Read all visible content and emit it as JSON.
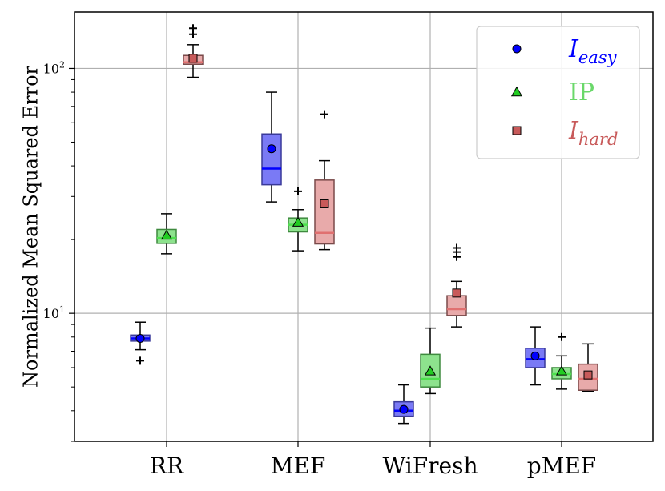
{
  "chart_data": {
    "type": "boxplot",
    "title": "",
    "xlabel": "",
    "ylabel": "Normalized Mean Squared Error",
    "yscale": "log",
    "ylim": [
      3.0,
      170
    ],
    "yticks": [
      {
        "value": 10,
        "base": "10",
        "exp": "1"
      },
      {
        "value": 100,
        "base": "10",
        "exp": "2"
      }
    ],
    "grid": true,
    "legend_position": "top-right",
    "categories": [
      "RR",
      "MEF",
      "WiFresh",
      "pMEF"
    ],
    "series": [
      {
        "name": "I_easy",
        "legend_main": "I",
        "legend_sub": "easy",
        "color": "#0000ff",
        "box_color": "#7a7af5",
        "box_edge": "#3a3a9a",
        "median_color": "#0000ff",
        "marker": "circle",
        "boxes": [
          {
            "whislo": 7.1,
            "q1": 7.7,
            "med": 7.9,
            "q3": 8.15,
            "whishi": 9.2,
            "mean": 7.9,
            "fliers": [
              6.4
            ]
          },
          {
            "whislo": 28.5,
            "q1": 33.5,
            "med": 39,
            "q3": 54,
            "whishi": 80,
            "mean": 47,
            "fliers": []
          },
          {
            "whislo": 3.55,
            "q1": 3.8,
            "med": 4.0,
            "q3": 4.35,
            "whishi": 5.1,
            "mean": 4.05,
            "fliers": []
          },
          {
            "whislo": 5.1,
            "q1": 6.0,
            "med": 6.5,
            "q3": 7.2,
            "whishi": 8.8,
            "mean": 6.7,
            "fliers": []
          }
        ]
      },
      {
        "name": "IP",
        "legend_main": "IP",
        "legend_sub": "",
        "color": "#22cc22",
        "legend_text_color": "#6ad86a",
        "box_color": "#8de28d",
        "box_edge": "#3e8a3e",
        "median_color": "#4ee04e",
        "marker": "triangle",
        "boxes": [
          {
            "whislo": 17.5,
            "q1": 19.3,
            "med": 20.3,
            "q3": 22,
            "whishi": 25.5,
            "mean": 20.8,
            "fliers": []
          },
          {
            "whislo": 18,
            "q1": 21.5,
            "med": 23,
            "q3": 24.5,
            "whishi": 26.5,
            "mean": 23.5,
            "fliers": [
              31.5
            ]
          },
          {
            "whislo": 4.7,
            "q1": 5.0,
            "med": 5.4,
            "q3": 6.8,
            "whishi": 8.7,
            "mean": 5.8,
            "fliers": []
          },
          {
            "whislo": 4.9,
            "q1": 5.4,
            "med": 5.65,
            "q3": 6.0,
            "whishi": 6.7,
            "mean": 5.8,
            "fliers": [
              8.0
            ]
          }
        ]
      },
      {
        "name": "I_hard",
        "legend_main": "I",
        "legend_sub": "hard",
        "color": "#c85a5a",
        "legend_text_color": "#c85a5a",
        "box_color": "#e8aaaa",
        "box_edge": "#7a4a4a",
        "median_color": "#e07070",
        "marker": "square",
        "boxes": [
          {
            "whislo": 92,
            "q1": 104,
            "med": 106,
            "q3": 113,
            "whishi": 125,
            "mean": 110,
            "fliers": [
              138,
              146
            ]
          },
          {
            "whislo": 18.2,
            "q1": 19.2,
            "med": 21.3,
            "q3": 35,
            "whishi": 42,
            "mean": 28,
            "fliers": [
              65
            ]
          },
          {
            "whislo": 8.8,
            "q1": 9.8,
            "med": 10.4,
            "q3": 11.8,
            "whishi": 13.5,
            "mean": 12.1,
            "fliers": [
              17,
              17.8,
              18.5
            ]
          },
          {
            "whislo": 4.8,
            "q1": 4.85,
            "med": 5.4,
            "q3": 6.2,
            "whishi": 7.5,
            "mean": 5.6,
            "fliers": []
          }
        ]
      }
    ]
  }
}
